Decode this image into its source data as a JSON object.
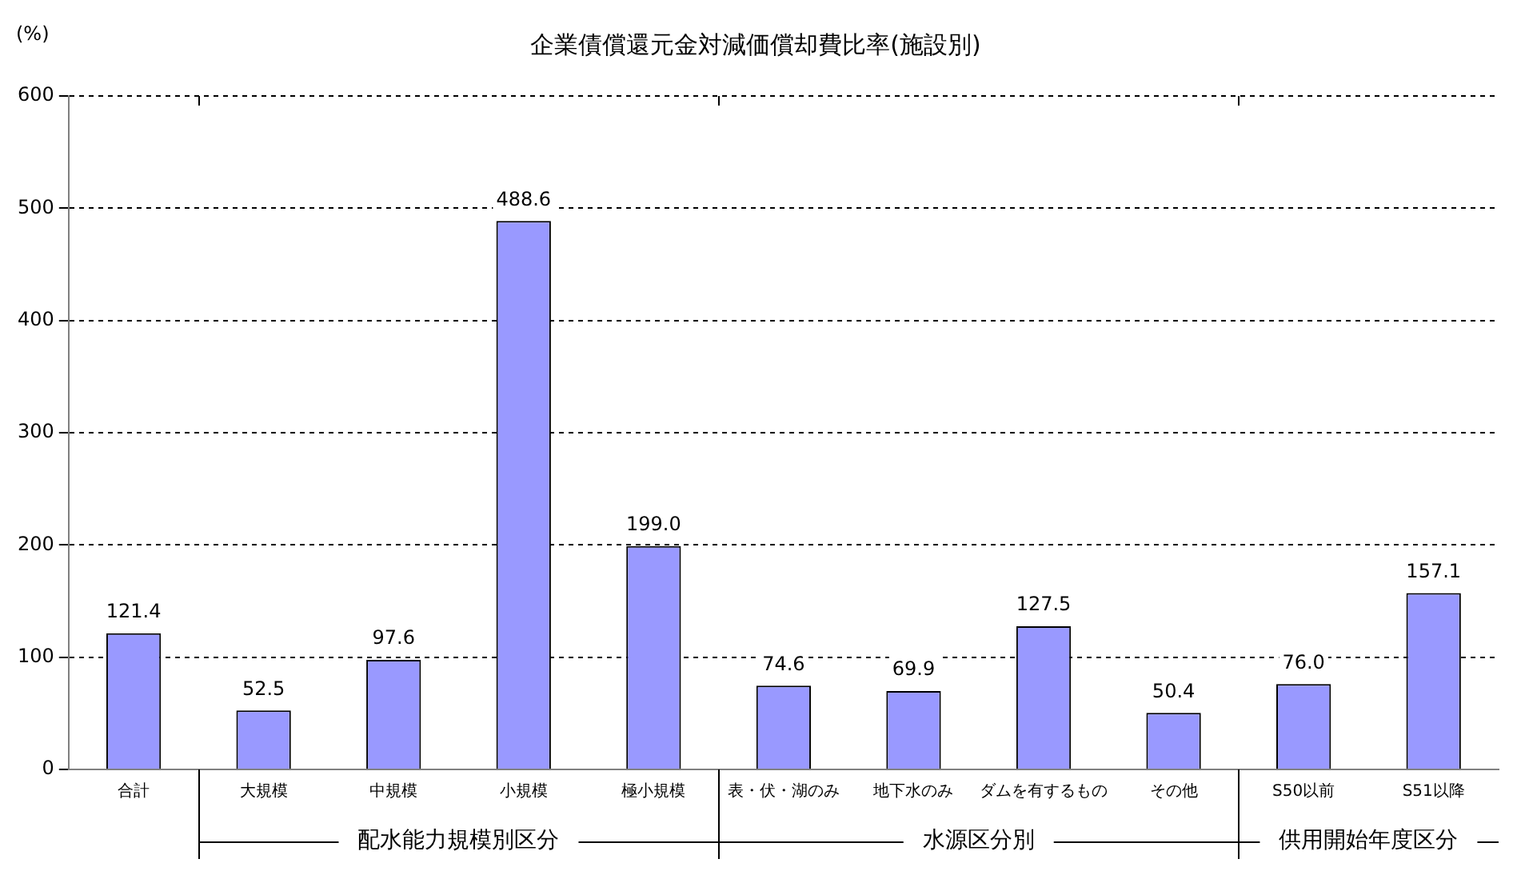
{
  "chart_data": {
    "type": "bar",
    "title": "企業債償還元金対減価償却費比率(施設別)",
    "ylabel": "(%)",
    "categories": [
      "合計",
      "大規模",
      "中規模",
      "小規模",
      "極小規模",
      "表・伏・湖のみ",
      "地下水のみ",
      "ダムを有するもの",
      "その他",
      "S50以前",
      "S51以降"
    ],
    "values": [
      121.4,
      52.5,
      97.6,
      488.6,
      199.0,
      74.6,
      69.9,
      127.5,
      50.4,
      76.0,
      157.1
    ],
    "color": "#9999ff",
    "ylim": [
      0,
      600
    ],
    "yticks": [
      0,
      100,
      200,
      300,
      400,
      500,
      600
    ],
    "grid": "y",
    "value_labels": [
      "121.4",
      "52.5",
      "97.6",
      "488.6",
      "199.0",
      "74.6",
      "69.9",
      "127.5",
      "50.4",
      "76.0",
      "157.1"
    ],
    "annotations": [
      "配水能力規模別区分",
      "水源区分別",
      "供用開始年度区分"
    ]
  }
}
